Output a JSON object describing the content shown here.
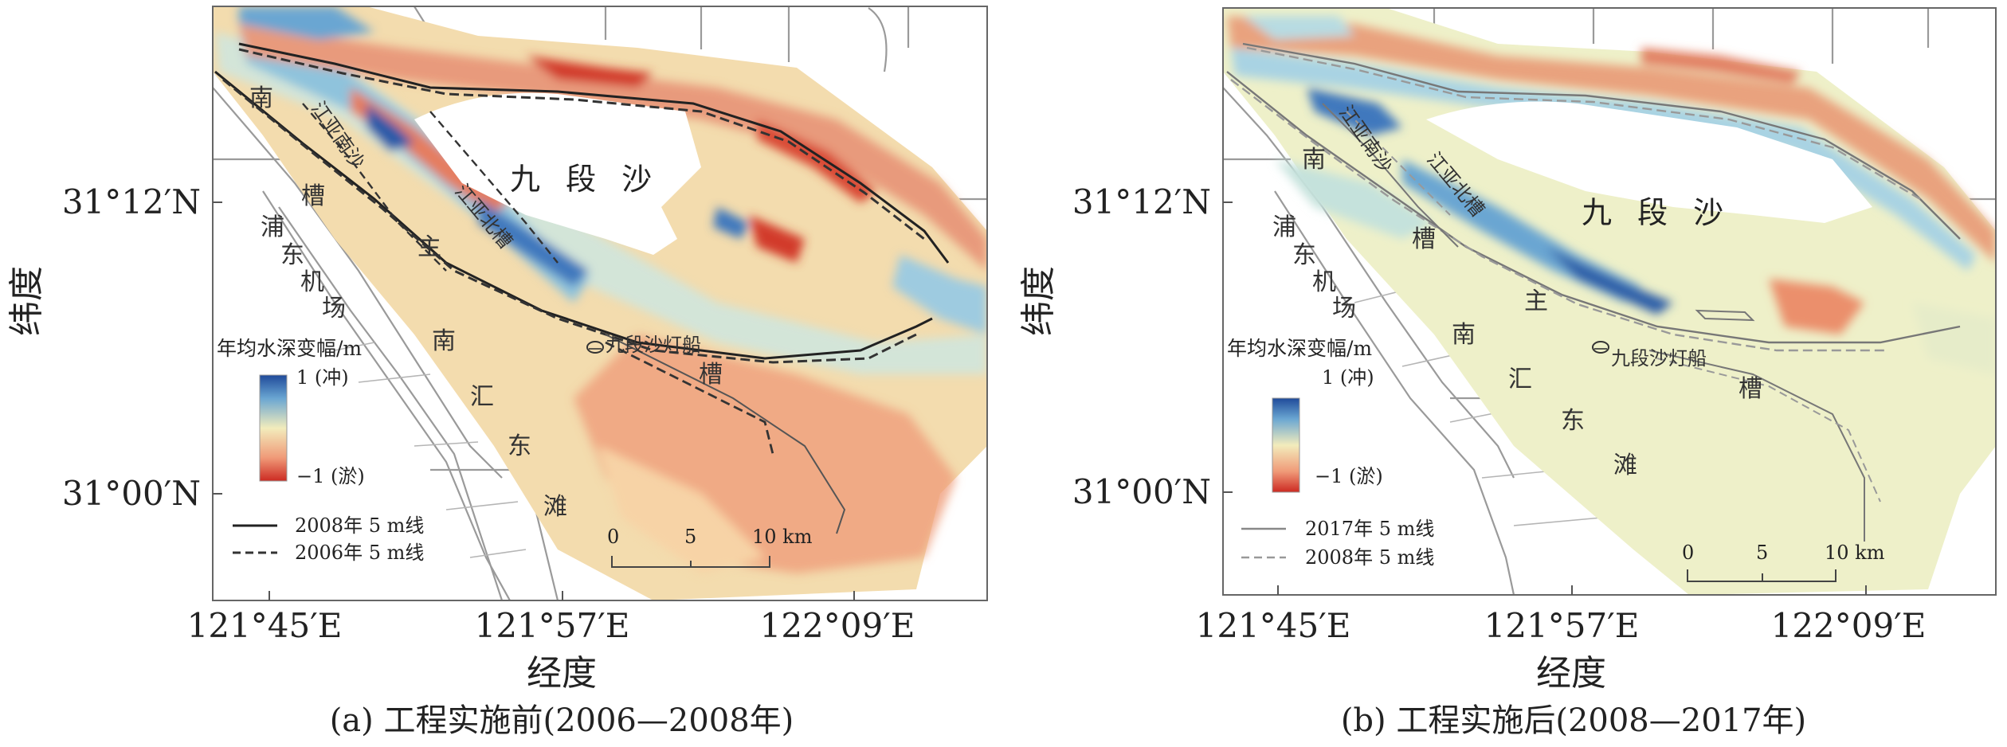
{
  "axes": {
    "y_title": "纬度",
    "x_title": "经度",
    "lat_ticks": [
      "31°12′N",
      "31°00′N"
    ],
    "lon_ticks": [
      "121°45′E",
      "121°57′E",
      "122°09′E"
    ]
  },
  "panels": [
    {
      "caption": "(a) 工程实施前(2006—2008年)",
      "legend_title": "年均水深变幅/m",
      "legend_max": "1 (冲)",
      "legend_min": "−1 (淤)",
      "line_solid": "2008年 5 m线",
      "line_dashed": "2006年 5 m线",
      "scale_labels": [
        "0",
        "5",
        "10 km"
      ],
      "places": {
        "island": "九 段 沙",
        "nan": "南",
        "cao": "槽",
        "zhu": "主",
        "pu": "浦",
        "dong": "东",
        "ji": "机",
        "chang": "场",
        "nan2": "南",
        "hui": "汇",
        "dong2": "东",
        "tan": "滩",
        "cao2": "槽",
        "jiangyanan": "江亚南沙",
        "jiangyabei": "江亚北槽",
        "lightship": "九段沙灯船"
      }
    },
    {
      "caption": "(b) 工程实施后(2008—2017年)",
      "legend_title": "年均水深变幅/m",
      "legend_max": "1 (冲)",
      "legend_min": "−1 (淤)",
      "line_solid": "2017年 5 m线",
      "line_dashed": "2008年 5 m线",
      "scale_labels": [
        "0",
        "5",
        "10 km"
      ],
      "places": {
        "island": "九 段 沙",
        "nan": "南",
        "cao": "槽",
        "zhu": "主",
        "pu": "浦",
        "dong": "东",
        "ji": "机",
        "chang": "场",
        "nan2": "南",
        "hui": "汇",
        "dong2": "东",
        "tan": "滩",
        "cao2": "槽",
        "jiangyanan": "江亚南沙",
        "jiangyabei": "江亚北槽",
        "lightship": "九段沙灯船"
      }
    }
  ],
  "colors": {
    "scour_strong": "#2a5aa8",
    "scour": "#8fc3dc",
    "neutral": "#f2ecbc",
    "deposit": "#f0a882",
    "deposit_strong": "#d23a2c"
  }
}
